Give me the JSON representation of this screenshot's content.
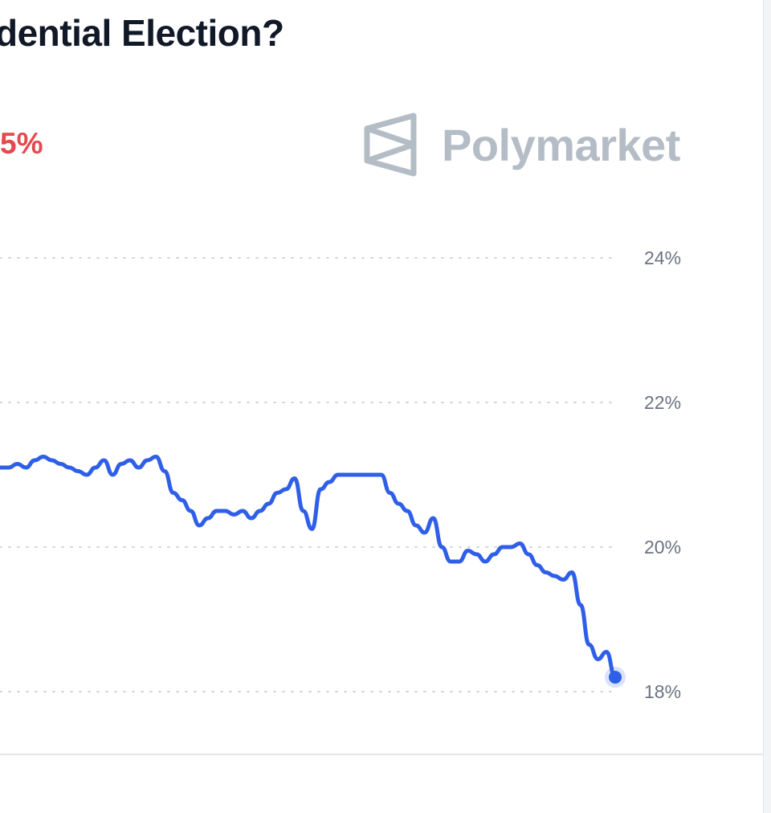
{
  "header": {
    "title": "dential Election?",
    "change": "5%"
  },
  "brand": {
    "name": "Polymarket",
    "logo_icon": "polymarket-logo-icon"
  },
  "colors": {
    "line": "#2f5fe8",
    "change": "#e5484d",
    "brand": "#b4bcc6"
  },
  "chart_data": {
    "type": "line",
    "title": "",
    "xlabel": "",
    "ylabel": "",
    "ylim": [
      17.8,
      24.5
    ],
    "y_ticks": [
      24,
      22,
      20,
      18
    ],
    "y_tick_labels": [
      "24%",
      "22%",
      "20%",
      "18%"
    ],
    "grid": true,
    "grid_style": "dotted",
    "y_axis_position": "right",
    "series": [
      {
        "values": [
          21.1,
          21.1,
          21.15,
          21.1,
          21.2,
          21.25,
          21.2,
          21.15,
          21.1,
          21.05,
          21.0,
          21.1,
          21.2,
          21.0,
          21.15,
          21.2,
          21.1,
          21.2,
          21.25,
          21.05,
          20.75,
          20.65,
          20.5,
          20.3,
          20.4,
          20.5,
          20.5,
          20.45,
          20.5,
          20.4,
          20.5,
          20.6,
          20.75,
          20.8,
          20.95,
          20.5,
          20.25,
          20.8,
          20.9,
          21.0,
          21.0,
          21.0,
          21.0,
          21.0,
          21.0,
          20.75,
          20.6,
          20.5,
          20.3,
          20.2,
          20.4,
          20.0,
          19.8,
          19.8,
          19.95,
          19.9,
          19.8,
          19.9,
          20.0,
          20.0,
          20.05,
          19.9,
          19.75,
          19.65,
          19.6,
          19.55,
          19.65,
          19.2,
          18.65,
          18.45,
          18.55,
          18.2
        ]
      }
    ]
  }
}
